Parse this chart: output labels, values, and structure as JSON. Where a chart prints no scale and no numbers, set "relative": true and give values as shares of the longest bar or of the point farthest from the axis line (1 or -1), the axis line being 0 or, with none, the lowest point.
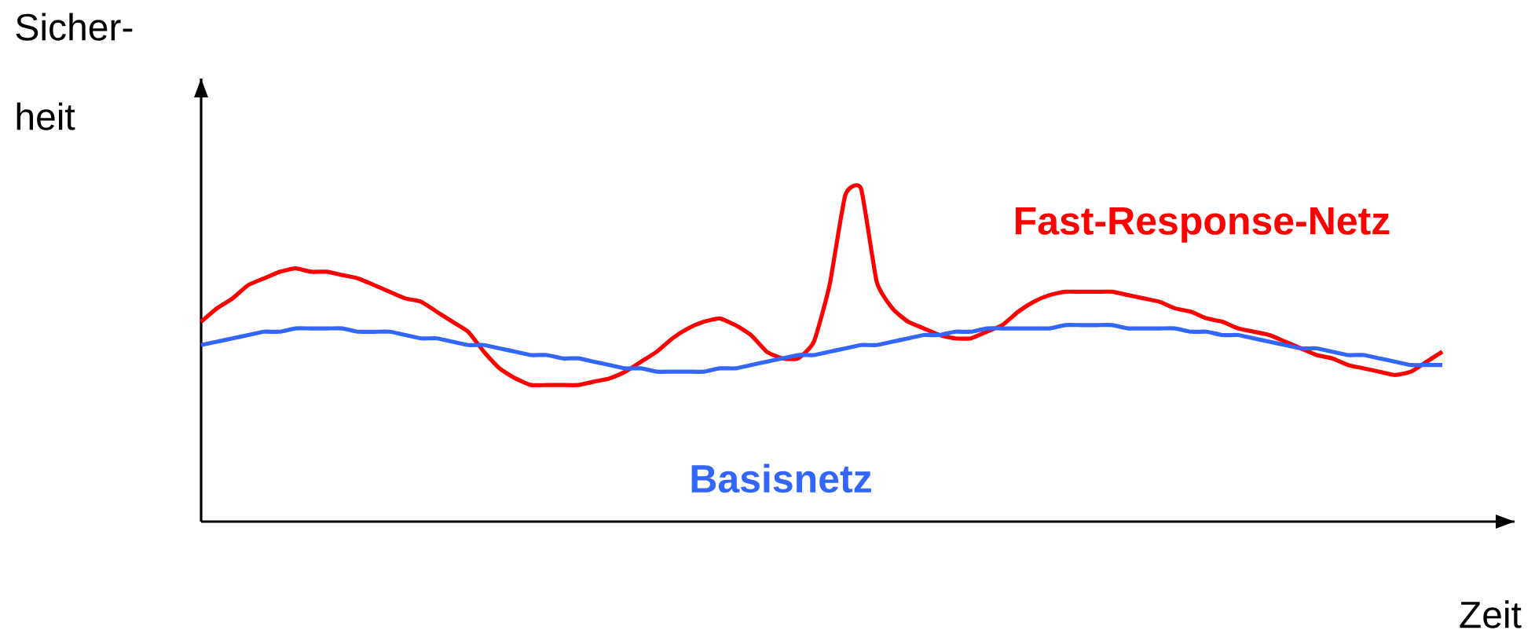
{
  "chart_data": {
    "type": "line",
    "relative": true,
    "xlabel": "Zeit",
    "ylabel": "Sicher-heit",
    "categories": [
      null,
      null,
      null,
      null,
      null,
      null,
      null,
      null,
      null,
      null,
      null,
      null,
      null,
      null,
      null,
      null,
      null,
      null,
      null,
      null,
      null,
      null,
      null,
      null,
      null,
      null,
      null,
      null,
      null,
      null,
      null,
      null,
      null,
      null,
      null,
      null,
      null,
      null,
      null,
      null,
      null,
      null,
      null,
      null,
      null,
      null,
      null,
      null,
      null,
      null,
      null,
      null,
      null,
      null,
      null,
      null,
      null,
      null,
      null,
      null,
      null,
      null,
      null,
      null,
      null,
      null,
      null,
      null,
      null,
      null,
      null,
      null,
      null,
      null,
      null,
      null,
      null,
      null,
      null,
      null
    ],
    "series": [
      {
        "name": "Fast-Response-Netz",
        "color": "#ff0000",
        "values": [
          0.6,
          0.64,
          0.67,
          0.71,
          0.73,
          0.75,
          0.76,
          0.75,
          0.75,
          0.74,
          0.73,
          0.71,
          0.69,
          0.67,
          0.66,
          0.63,
          0.6,
          0.57,
          0.51,
          0.46,
          0.43,
          0.41,
          0.41,
          0.41,
          0.41,
          0.42,
          0.43,
          0.45,
          0.48,
          0.51,
          0.55,
          0.58,
          0.6,
          0.61,
          0.59,
          0.56,
          0.51,
          0.49,
          0.49,
          0.54,
          0.71,
          0.98,
          1,
          0.72,
          0.64,
          0.6,
          0.58,
          0.56,
          0.55,
          0.55,
          0.57,
          0.59,
          0.63,
          0.66,
          0.68,
          0.69,
          0.69,
          0.69,
          0.69,
          0.68,
          0.67,
          0.66,
          0.64,
          0.63,
          0.61,
          0.6,
          0.58,
          0.57,
          0.56,
          0.54,
          0.52,
          0.5,
          0.49,
          0.47,
          0.46,
          0.45,
          0.44,
          0.45,
          0.48,
          0.51
        ]
      },
      {
        "name": "Basisnetz",
        "color": "#3366ff",
        "values": [
          0.53,
          0.54,
          0.55,
          0.56,
          0.57,
          0.57,
          0.58,
          0.58,
          0.58,
          0.58,
          0.57,
          0.57,
          0.57,
          0.56,
          0.55,
          0.55,
          0.54,
          0.53,
          0.53,
          0.52,
          0.51,
          0.5,
          0.5,
          0.49,
          0.49,
          0.48,
          0.47,
          0.46,
          0.46,
          0.45,
          0.45,
          0.45,
          0.45,
          0.46,
          0.46,
          0.47,
          0.48,
          0.49,
          0.5,
          0.5,
          0.51,
          0.52,
          0.53,
          0.53,
          0.54,
          0.55,
          0.56,
          0.56,
          0.57,
          0.57,
          0.58,
          0.58,
          0.58,
          0.58,
          0.58,
          0.59,
          0.59,
          0.59,
          0.59,
          0.58,
          0.58,
          0.58,
          0.58,
          0.57,
          0.57,
          0.56,
          0.56,
          0.55,
          0.54,
          0.53,
          0.52,
          0.52,
          0.51,
          0.5,
          0.5,
          0.49,
          0.48,
          0.47,
          0.47,
          0.47
        ]
      }
    ]
  }
}
